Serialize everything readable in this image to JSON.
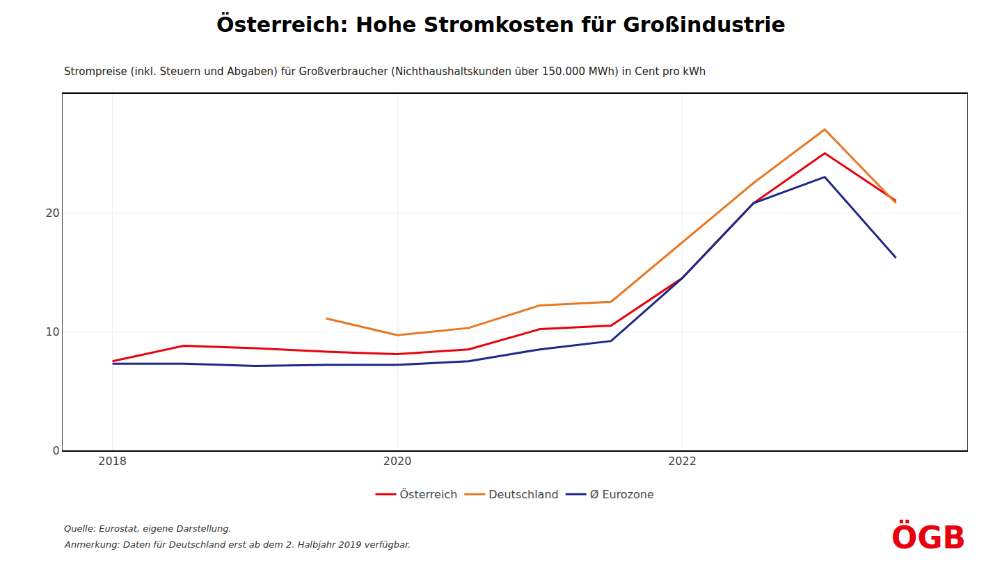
{
  "chart_data": {
    "type": "line",
    "title": "Österreich: Hohe Stromkosten für Großindustrie",
    "subtitle": "Strompreise (inkl. Steuern und Abgaben) für Großverbraucher (Nichthaushaltskunden über 150.000 MWh) in Cent pro kWh",
    "x": [
      2018.0,
      2018.5,
      2019.0,
      2019.5,
      2020.0,
      2020.5,
      2021.0,
      2021.5,
      2022.0,
      2022.5,
      2023.0,
      2023.5
    ],
    "series": [
      {
        "name": "Österreich",
        "color": "#E8000D",
        "values": [
          7.5,
          8.8,
          8.6,
          8.3,
          8.1,
          8.5,
          10.2,
          10.5,
          14.5,
          20.8,
          25.0,
          21.0
        ]
      },
      {
        "name": "Deutschland",
        "color": "#E87722",
        "values": [
          null,
          null,
          null,
          11.1,
          9.7,
          10.3,
          12.2,
          12.5,
          17.5,
          22.5,
          27.0,
          20.8
        ]
      },
      {
        "name": "Ø Eurozone",
        "color": "#1F2887",
        "values": [
          7.3,
          7.3,
          7.1,
          7.2,
          7.2,
          7.5,
          8.5,
          9.2,
          14.5,
          20.8,
          23.0,
          16.2
        ]
      }
    ],
    "xlim": [
      2017.65,
      2024.0
    ],
    "xticks": [
      2018,
      2020,
      2022
    ],
    "ylim": [
      0,
      30
    ],
    "yticks": [
      0,
      10,
      20
    ],
    "grid": true,
    "legend": "bottom",
    "annotations": [
      {
        "text": "Quelle: Eurostat, eigene Darstellung."
      },
      {
        "text": "Anmerkung: Daten für Deutschland erst ab dem 2. Halbjahr 2019 verfügbar."
      },
      {
        "text": "ÖGB",
        "color": "#E8000D"
      }
    ]
  }
}
